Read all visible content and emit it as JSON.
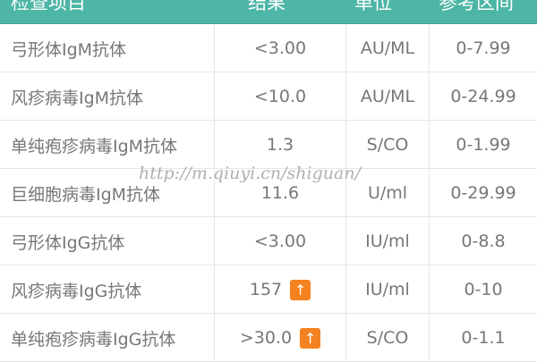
{
  "header": {
    "columns": [
      "检查项目",
      "结果",
      "单位",
      "参考区间"
    ],
    "color": "#4db6a6"
  },
  "rows": [
    {
      "item": "弓形体IgM抗体",
      "result": "<3.00",
      "unit": "AU/ML",
      "range": "0-7.99",
      "high": false
    },
    {
      "item": "风疹病毒IgM抗体",
      "result": "<10.0",
      "unit": "AU/ML",
      "range": "0-24.99",
      "high": false
    },
    {
      "item": "单纯疱疹病毒IgM抗体",
      "result": "1.3",
      "unit": "S/CO",
      "range": "0-1.99",
      "high": false
    },
    {
      "item": "巨细胞病毒IgM抗体",
      "result": "11.6",
      "unit": "U/ml",
      "range": "0-29.99",
      "high": false
    },
    {
      "item": "弓形体IgG抗体",
      "result": "<3.00",
      "unit": "IU/ml",
      "range": "0-8.8",
      "high": false
    },
    {
      "item": "风疹病毒IgG抗体",
      "result": "157",
      "unit": "IU/ml",
      "range": "0-10",
      "high": true
    },
    {
      "item": "单纯疱疹病毒IgG抗体",
      "result": ">30.0",
      "unit": "S/CO",
      "range": "0-1.1",
      "high": true
    }
  ],
  "high_icon": {
    "glyph": "↑",
    "name": "arrow-up-icon",
    "color": "#f58220"
  },
  "watermark": "http://m.qiuyi.cn/shiguan/"
}
